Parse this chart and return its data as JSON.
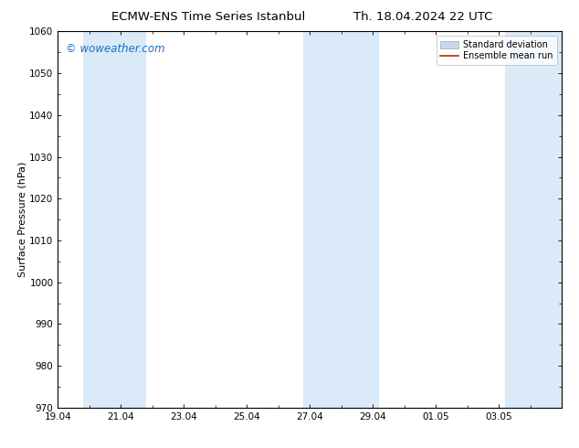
{
  "title_left": "ECMW-ENS Time Series Istanbul",
  "title_right": "Th. 18.04.2024 22 UTC",
  "ylabel": "Surface Pressure (hPa)",
  "ylim": [
    970,
    1060
  ],
  "yticks": [
    970,
    980,
    990,
    1000,
    1010,
    1020,
    1030,
    1040,
    1050,
    1060
  ],
  "xlim_start": 0.0,
  "xlim_end": 16.0,
  "xtick_labels": [
    "19.04",
    "21.04",
    "23.04",
    "25.04",
    "27.04",
    "29.04",
    "01.05",
    "03.05"
  ],
  "xtick_positions": [
    0,
    2,
    4,
    6,
    8,
    10,
    12,
    14
  ],
  "shaded_bands": [
    {
      "x_start": 0.8,
      "x_end": 2.8
    },
    {
      "x_start": 7.8,
      "x_end": 10.2
    },
    {
      "x_start": 14.2,
      "x_end": 16.0
    }
  ],
  "band_color": "#daeaf8",
  "background_color": "#ffffff",
  "watermark": "© woweather.com",
  "watermark_color": "#1a6fc4",
  "legend_std_color": "#c8d8e8",
  "legend_std_edge": "#aaaaaa",
  "legend_mean_color": "#cc2200",
  "title_fontsize": 9.5,
  "axis_label_fontsize": 8,
  "tick_fontsize": 7.5,
  "watermark_fontsize": 8.5,
  "legend_fontsize": 7
}
